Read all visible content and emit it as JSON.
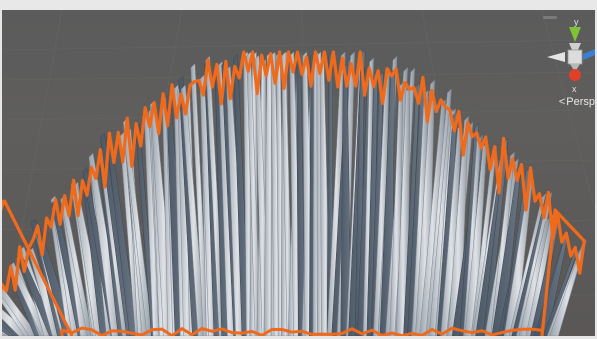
{
  "scene_view": {
    "projection_label": "Persp",
    "projection_arrow": "<",
    "selection_outline_color": "#f06a1c",
    "mesh_color": "#c9ccd0",
    "background_color": "#5c5b5a"
  },
  "gizmo": {
    "y_label": "y",
    "x_label": "x",
    "y_color": "#7ec236",
    "x_color": "#e0402a",
    "z_color": "#3c7fd6"
  }
}
